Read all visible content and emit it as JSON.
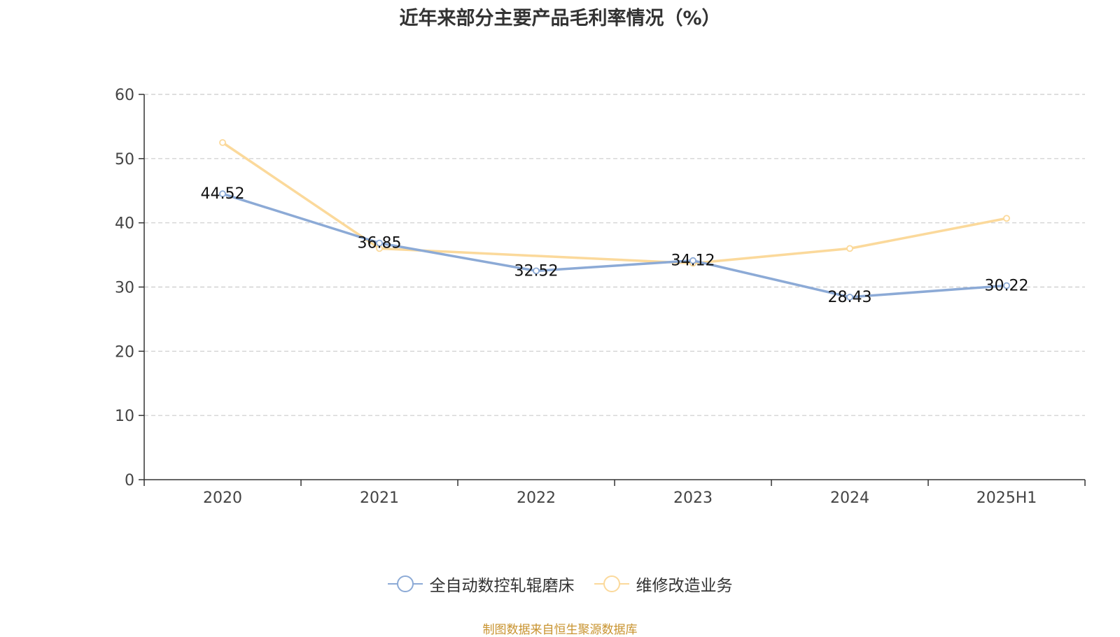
{
  "chart_data": {
    "type": "line",
    "title": "近年来部分主要产品毛利率情况（%）",
    "categories": [
      "2020",
      "2021",
      "2022",
      "2023",
      "2024",
      "2025H1"
    ],
    "ylim": [
      0,
      60
    ],
    "yticks": [
      "0",
      "10",
      "20",
      "30",
      "40",
      "50",
      "60"
    ],
    "grid": true,
    "legend_position": "bottom",
    "series": [
      {
        "name": "全自动数控轧辊磨床",
        "color": "#8caad6",
        "values": [
          44.52,
          36.85,
          32.52,
          34.12,
          28.43,
          30.22
        ],
        "labels": [
          "44.52",
          "36.85",
          "32.52",
          "34.12",
          "28.43",
          "30.22"
        ]
      },
      {
        "name": "维修改造业务",
        "color": "#fbd99b",
        "values": [
          52.5,
          36.0,
          null,
          33.7,
          36.0,
          40.7
        ],
        "labels": []
      }
    ]
  },
  "source_note": "制图数据来自恒生聚源数据库"
}
